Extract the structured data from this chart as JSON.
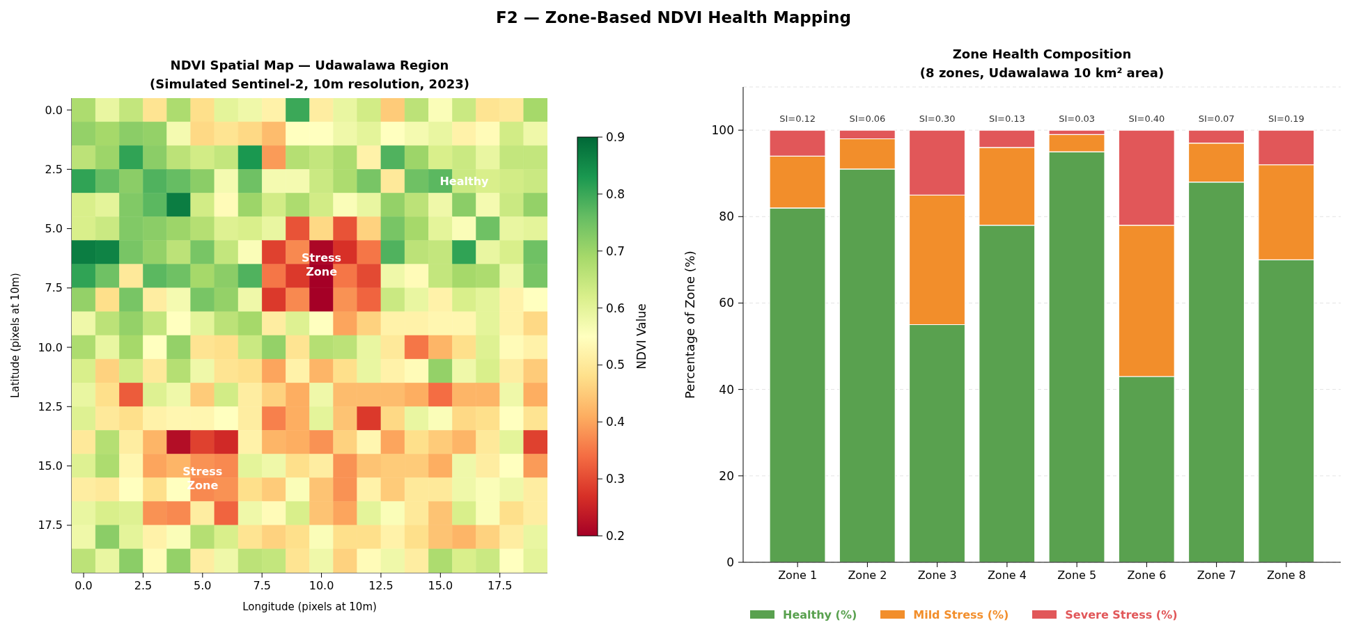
{
  "chart_data": [
    {
      "type": "other",
      "title": "F2 — Zone-Based NDVI Health Mapping"
    },
    {
      "type": "heatmap",
      "title": "NDVI Spatial Map — Udawalawa Region\n(Simulated Sentinel-2, 10m resolution, 2023)",
      "xlabel": "Longitude (pixels at 10m)",
      "ylabel": "Latitude (pixels at 10m)",
      "clabel": "NDVI Value",
      "x": [
        0,
        1,
        2,
        3,
        4,
        5,
        6,
        7,
        8,
        9,
        10,
        11,
        12,
        13,
        14,
        15,
        16,
        17,
        18,
        19
      ],
      "xlim": [
        -0.5,
        19.5
      ],
      "xticks": [
        {
          "value": 0,
          "label": "0.0"
        },
        2.5,
        {
          "value": 5,
          "label": "5.0"
        },
        7.5,
        {
          "value": 10,
          "label": "10.0"
        },
        12.5,
        {
          "value": 15,
          "label": "15.0"
        },
        17.5
      ],
      "ylim": [
        19.5,
        -0.5
      ],
      "yticks": [
        {
          "value": 0,
          "label": "0.0"
        },
        2.5,
        {
          "value": 5,
          "label": "5.0"
        },
        7.5,
        {
          "value": 10,
          "label": "10.0"
        },
        12.5,
        {
          "value": 15,
          "label": "15.0"
        },
        17.5
      ],
      "clim": [
        0.2,
        0.9
      ],
      "cticks": [
        0.2,
        0.3,
        0.4,
        0.5,
        0.6,
        0.7,
        0.8,
        0.9
      ],
      "cells": [
        [
          0.68,
          0.59,
          0.65,
          0.49,
          0.68,
          0.48,
          0.6,
          0.58,
          0.52,
          0.8,
          0.51,
          0.59,
          0.63,
          0.45,
          0.66,
          0.56,
          0.64,
          0.49,
          0.5,
          0.69
        ],
        [
          0.71,
          0.69,
          0.72,
          0.71,
          0.57,
          0.47,
          0.49,
          0.47,
          0.43,
          0.55,
          0.55,
          0.58,
          0.6,
          0.55,
          0.57,
          0.59,
          0.52,
          0.54,
          0.63,
          0.58
        ],
        [
          0.66,
          0.7,
          0.81,
          0.72,
          0.66,
          0.63,
          0.65,
          0.83,
          0.39,
          0.67,
          0.65,
          0.68,
          0.52,
          0.78,
          0.7,
          0.62,
          0.64,
          0.59,
          0.65,
          0.65
        ],
        [
          0.81,
          0.76,
          0.72,
          0.78,
          0.76,
          0.72,
          0.57,
          0.75,
          0.57,
          0.57,
          0.64,
          0.68,
          0.74,
          0.5,
          0.75,
          0.77,
          0.64,
          0.62,
          0.63,
          0.64
        ],
        [
          0.62,
          0.6,
          0.73,
          0.77,
          0.87,
          0.63,
          0.54,
          0.7,
          0.63,
          0.68,
          0.63,
          0.56,
          0.59,
          0.71,
          0.66,
          0.58,
          0.72,
          0.57,
          0.64,
          0.71
        ],
        [
          0.62,
          0.64,
          0.73,
          0.72,
          0.7,
          0.67,
          0.61,
          0.62,
          0.59,
          0.31,
          0.47,
          0.31,
          0.46,
          0.74,
          0.69,
          0.6,
          0.56,
          0.75,
          0.59,
          0.6
        ],
        [
          0.87,
          0.86,
          0.74,
          0.71,
          0.66,
          0.74,
          0.65,
          0.56,
          0.29,
          0.37,
          0.21,
          0.27,
          0.35,
          0.78,
          0.66,
          0.65,
          0.81,
          0.59,
          0.62,
          0.75
        ],
        [
          0.81,
          0.75,
          0.5,
          0.77,
          0.75,
          0.69,
          0.72,
          0.78,
          0.35,
          0.28,
          0.2,
          0.35,
          0.3,
          0.58,
          0.54,
          0.65,
          0.69,
          0.68,
          0.58,
          0.74
        ],
        [
          0.71,
          0.48,
          0.74,
          0.51,
          0.57,
          0.74,
          0.71,
          0.58,
          0.28,
          0.37,
          0.2,
          0.38,
          0.33,
          0.64,
          0.59,
          0.52,
          0.62,
          0.6,
          0.52,
          0.55
        ],
        [
          0.58,
          0.66,
          0.71,
          0.65,
          0.55,
          0.6,
          0.66,
          0.69,
          0.51,
          0.61,
          0.55,
          0.4,
          0.46,
          0.52,
          0.52,
          0.53,
          0.53,
          0.6,
          0.52,
          0.47
        ],
        [
          0.68,
          0.59,
          0.69,
          0.55,
          0.71,
          0.49,
          0.48,
          0.64,
          0.71,
          0.49,
          0.67,
          0.66,
          0.59,
          0.5,
          0.35,
          0.42,
          0.48,
          0.61,
          0.54,
          0.52
        ],
        [
          0.62,
          0.46,
          0.63,
          0.5,
          0.67,
          0.58,
          0.49,
          0.48,
          0.4,
          0.52,
          0.42,
          0.48,
          0.59,
          0.52,
          0.54,
          0.71,
          0.58,
          0.62,
          0.51,
          0.45
        ],
        [
          0.59,
          0.48,
          0.32,
          0.61,
          0.58,
          0.45,
          0.63,
          0.51,
          0.46,
          0.41,
          0.58,
          0.43,
          0.43,
          0.43,
          0.41,
          0.34,
          0.42,
          0.42,
          0.58,
          0.41
        ],
        [
          0.61,
          0.5,
          0.48,
          0.52,
          0.53,
          0.53,
          0.55,
          0.51,
          0.36,
          0.41,
          0.6,
          0.44,
          0.28,
          0.47,
          0.59,
          0.56,
          0.47,
          0.48,
          0.55,
          0.49
        ],
        [
          0.5,
          0.67,
          0.51,
          0.42,
          0.22,
          0.29,
          0.26,
          0.52,
          0.42,
          0.41,
          0.38,
          0.46,
          0.53,
          0.4,
          0.48,
          0.45,
          0.42,
          0.5,
          0.6,
          0.29
        ],
        [
          0.61,
          0.68,
          0.53,
          0.4,
          0.42,
          0.38,
          0.37,
          0.6,
          0.58,
          0.48,
          0.51,
          0.38,
          0.44,
          0.45,
          0.45,
          0.41,
          0.58,
          0.51,
          0.55,
          0.39
        ],
        [
          0.51,
          0.5,
          0.55,
          0.48,
          0.55,
          0.37,
          0.38,
          0.48,
          0.45,
          0.56,
          0.44,
          0.38,
          0.52,
          0.45,
          0.5,
          0.5,
          0.58,
          0.56,
          0.58,
          0.51
        ],
        [
          0.59,
          0.62,
          0.61,
          0.38,
          0.37,
          0.51,
          0.33,
          0.58,
          0.54,
          0.62,
          0.44,
          0.4,
          0.6,
          0.56,
          0.5,
          0.44,
          0.62,
          0.56,
          0.48,
          0.51
        ],
        [
          0.58,
          0.72,
          0.6,
          0.52,
          0.56,
          0.67,
          0.62,
          0.49,
          0.46,
          0.48,
          0.56,
          0.48,
          0.48,
          0.52,
          0.48,
          0.44,
          0.42,
          0.46,
          0.51,
          0.59
        ],
        [
          0.66,
          0.59,
          0.72,
          0.54,
          0.71,
          0.51,
          0.58,
          0.66,
          0.65,
          0.49,
          0.58,
          0.46,
          0.54,
          0.58,
          0.51,
          0.68,
          0.62,
          0.64,
          0.55,
          0.6
        ]
      ],
      "annotations": [
        "Healthy",
        "Stress\nZone",
        "Stress\nZone"
      ]
    },
    {
      "type": "bar",
      "title": "Zone Health Composition\n(8 zones, Udawalawa 10 km² area)",
      "ylabel": "Percentage of Zone (%)",
      "categories": [
        "Zone 1",
        "Zone 2",
        "Zone 3",
        "Zone 4",
        "Zone 5",
        "Zone 6",
        "Zone 7",
        "Zone 8"
      ],
      "series": [
        {
          "name": "Healthy (%)",
          "color": "#59a14f",
          "values": [
            82,
            91,
            55,
            78,
            95,
            43,
            88,
            70
          ]
        },
        {
          "name": "Mild Stress (%)",
          "color": "#f28e2b",
          "values": [
            12,
            7,
            30,
            18,
            4,
            35,
            9,
            22
          ]
        },
        {
          "name": "Severe Stress (%)",
          "color": "#e15759",
          "values": [
            6,
            2,
            15,
            4,
            1,
            22,
            3,
            8
          ]
        }
      ],
      "stacked": true,
      "ylim": [
        0,
        110
      ],
      "yticks": [
        0,
        20,
        40,
        60,
        80,
        100
      ],
      "grid": "y",
      "legend": "bottom left",
      "annotations": [
        "SI=0.12",
        "SI=0.06",
        "SI=0.30",
        "SI=0.13",
        "SI=0.03",
        "SI=0.40",
        "SI=0.07",
        "SI=0.19"
      ]
    }
  ]
}
